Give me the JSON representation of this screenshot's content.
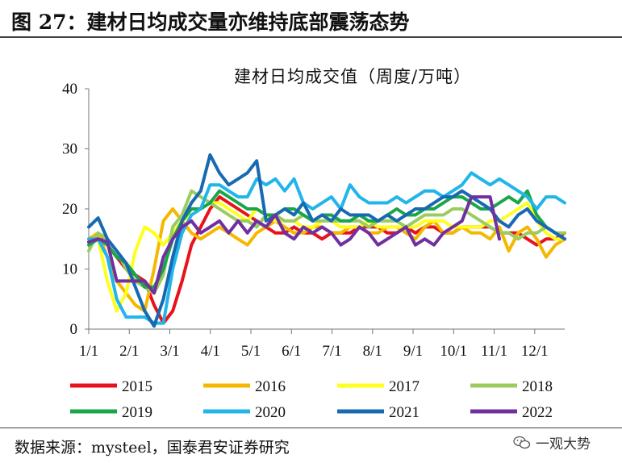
{
  "figure": {
    "title": "图 27：建材日均成交量亦维持底部震荡态势",
    "source": "数据来源：mysteel，国泰君安证券研究",
    "watermark": "一观大势"
  },
  "chart_data": {
    "type": "line",
    "title": "建材日均成交值（周度/万吨）",
    "xlabel": "",
    "ylabel": "",
    "ylim": [
      0,
      40
    ],
    "yticks": [
      "0",
      "10",
      "20",
      "30",
      "40"
    ],
    "xticks": [
      "1/1",
      "2/1",
      "3/1",
      "4/1",
      "5/1",
      "6/1",
      "7/1",
      "8/1",
      "9/1",
      "10/1",
      "11/1",
      "12/1"
    ],
    "x_unit": "week of year (1-52)",
    "grid": false,
    "legend_position": "bottom",
    "series": [
      {
        "name": "2015",
        "color": "#e8121c",
        "values": [
          14.5,
          15.5,
          14,
          12,
          10,
          9,
          8,
          4,
          1,
          3,
          8,
          14,
          17,
          20,
          22,
          21,
          20,
          19,
          18,
          17,
          16,
          16,
          17,
          16,
          16,
          15,
          16,
          16,
          16,
          17,
          17,
          17,
          16,
          16,
          17,
          16,
          17,
          17,
          16,
          16,
          17,
          17,
          17,
          17,
          16,
          16,
          16,
          15,
          14,
          15,
          15,
          16
        ]
      },
      {
        "name": "2016",
        "color": "#f5b800",
        "values": [
          15,
          16,
          12,
          8,
          6,
          4,
          3,
          10,
          18,
          20,
          18,
          16,
          15,
          16,
          17,
          16,
          15,
          14,
          16,
          17,
          18,
          17,
          16,
          16,
          17,
          17,
          16,
          16,
          17,
          17,
          16,
          16,
          17,
          17,
          16,
          15,
          17,
          18,
          16,
          16,
          17,
          16,
          16,
          15,
          17,
          13,
          16,
          17,
          15,
          12,
          14,
          15
        ]
      },
      {
        "name": "2017",
        "color": "#ffff1f",
        "values": [
          14,
          15,
          8,
          3,
          6,
          13,
          17,
          16,
          14,
          16,
          18,
          19,
          20,
          21,
          21,
          20,
          19,
          18,
          20,
          19,
          18,
          18,
          18,
          17,
          17,
          18,
          18,
          17,
          17,
          17,
          18,
          17,
          17,
          17,
          17,
          17,
          18,
          18,
          18,
          17,
          17,
          17,
          17,
          18,
          18,
          19,
          20,
          21,
          18,
          16,
          15,
          15
        ]
      },
      {
        "name": "2018",
        "color": "#9bcc5f",
        "values": [
          13,
          16,
          15,
          13,
          10,
          8,
          7,
          6,
          9,
          17,
          19,
          23,
          22,
          21,
          20,
          19,
          18,
          18,
          17,
          19,
          19,
          18,
          18,
          19,
          18,
          18,
          18,
          18,
          18,
          18,
          17,
          18,
          18,
          18,
          17,
          18,
          19,
          19,
          19,
          20,
          20,
          19,
          18,
          17,
          16,
          16,
          15,
          16,
          16,
          17,
          16,
          16
        ]
      },
      {
        "name": "2019",
        "color": "#19a649",
        "values": [
          14,
          15,
          14,
          12,
          11,
          9,
          7,
          7,
          10,
          15,
          18,
          20,
          20,
          21,
          23,
          22,
          21,
          20,
          20,
          19,
          19,
          20,
          20,
          19,
          18,
          19,
          19,
          18,
          18,
          19,
          18,
          18,
          19,
          20,
          19,
          19,
          20,
          20,
          21,
          22,
          22,
          21,
          20,
          20,
          21,
          22,
          21,
          23,
          19,
          17,
          16,
          15
        ]
      },
      {
        "name": "2020",
        "color": "#21b5ea",
        "values": [
          15,
          15,
          12,
          5,
          2,
          2,
          2,
          1,
          1,
          10,
          16,
          19,
          20,
          24,
          24,
          23,
          22,
          22,
          25,
          24,
          25,
          23,
          25,
          21,
          20,
          21,
          22,
          20,
          24,
          22,
          21,
          21,
          21,
          22,
          21,
          22,
          23,
          23,
          22,
          23,
          24,
          26,
          25,
          24,
          25,
          24,
          23,
          22,
          20,
          22,
          22,
          21
        ]
      },
      {
        "name": "2021",
        "color": "#1769b2",
        "values": [
          17,
          18.5,
          15,
          13,
          11,
          7,
          3,
          0.5,
          5,
          12,
          18,
          21,
          23,
          29,
          26,
          24,
          25,
          26,
          28,
          18,
          19,
          20,
          19,
          21,
          18,
          19,
          18,
          20,
          19,
          19,
          19,
          18,
          19,
          18,
          19,
          20,
          20,
          21,
          22,
          22,
          23,
          22,
          21,
          20,
          18,
          17,
          19,
          20,
          18,
          17,
          16,
          15
        ]
      },
      {
        "name": "2022",
        "color": "#7030a0",
        "values": [
          14.5,
          15,
          14.5,
          8,
          8,
          8,
          8,
          6,
          12,
          15,
          17,
          18,
          16,
          17,
          18,
          16,
          18,
          16,
          18,
          17,
          19,
          16,
          15,
          17,
          16,
          17,
          16,
          14,
          15,
          17,
          16,
          14,
          15,
          16,
          17,
          14,
          15,
          14,
          16,
          17,
          18,
          22,
          22,
          22,
          15,
          null,
          null,
          null,
          null,
          null,
          null,
          null
        ]
      }
    ]
  }
}
